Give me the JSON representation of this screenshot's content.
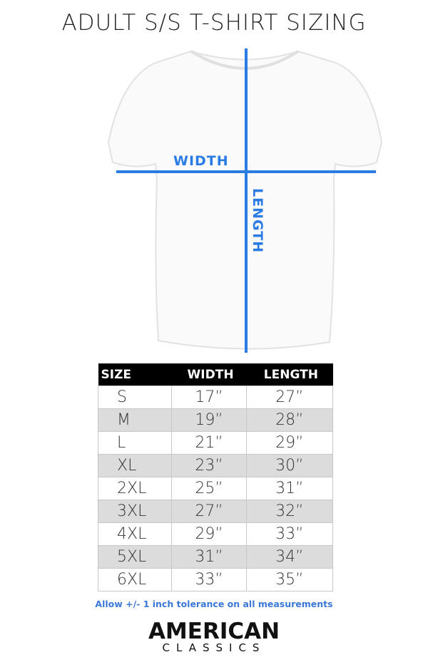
{
  "title": "ADULT S/S T-SHIRT SIZING",
  "diagram": {
    "width_label": "WIDTH",
    "length_label": "LENGTH",
    "line_color": "#2a7be4"
  },
  "table": {
    "headers": [
      "SIZE",
      "WIDTH",
      "LENGTH"
    ],
    "rows": [
      [
        "S",
        "17”",
        "27”"
      ],
      [
        "M",
        "19”",
        "28”"
      ],
      [
        "L",
        "21”",
        "29”"
      ],
      [
        "XL",
        "23”",
        "30”"
      ],
      [
        "2XL",
        "25”",
        "31”"
      ],
      [
        "3XL",
        "27”",
        "32”"
      ],
      [
        "4XL",
        "29”",
        "33”"
      ],
      [
        "5XL",
        "31”",
        "34”"
      ],
      [
        "6XL",
        "33”",
        "35”"
      ]
    ]
  },
  "note": "Allow +/- 1 inch tolerance on all measurements",
  "logo": {
    "line1": "AMERICAN",
    "line2": "CLASSICS"
  }
}
